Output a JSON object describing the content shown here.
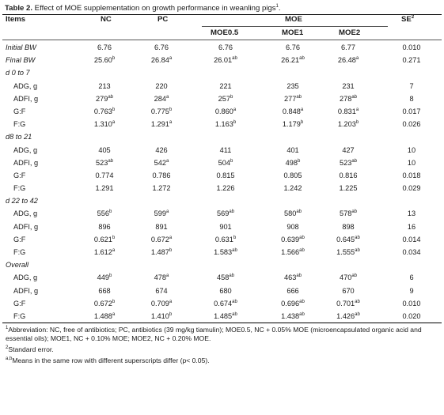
{
  "caption": {
    "bold": "Table 2.",
    "text": " Effect of MOE supplementation on growth performance in weanling pigs",
    "sup": "1",
    "end": "."
  },
  "header": {
    "items": "Items",
    "nc": "NC",
    "pc": "PC",
    "moe": "MOE",
    "se": "SE",
    "se_sup": "2",
    "moe05": "MOE0.5",
    "moe1": "MOE1",
    "moe2": "MOE2"
  },
  "rows": [
    {
      "label": "Initial BW",
      "italic": true,
      "indent": false,
      "vals": [
        [
          "6.76",
          ""
        ],
        [
          "6.76",
          ""
        ],
        [
          "6.76",
          ""
        ],
        [
          "6.76",
          ""
        ],
        [
          "6.77",
          ""
        ],
        [
          "0.010",
          ""
        ]
      ]
    },
    {
      "label": "Final BW",
      "italic": true,
      "indent": false,
      "vals": [
        [
          "25.60",
          "b"
        ],
        [
          "26.84",
          "a"
        ],
        [
          "26.01",
          "ab"
        ],
        [
          "26.21",
          "ab"
        ],
        [
          "26.48",
          "a"
        ],
        [
          "0.271",
          ""
        ]
      ]
    },
    {
      "label": "d 0 to 7",
      "italic": true,
      "indent": false,
      "vals": [
        [
          "",
          ""
        ],
        [
          "",
          ""
        ],
        [
          "",
          ""
        ],
        [
          "",
          ""
        ],
        [
          "",
          ""
        ],
        [
          "",
          ""
        ]
      ]
    },
    {
      "label": "ADG, g",
      "italic": false,
      "indent": true,
      "vals": [
        [
          "213",
          ""
        ],
        [
          "220",
          ""
        ],
        [
          "221",
          ""
        ],
        [
          "235",
          ""
        ],
        [
          "231",
          ""
        ],
        [
          "7",
          ""
        ]
      ]
    },
    {
      "label": "ADFI, g",
      "italic": false,
      "indent": true,
      "vals": [
        [
          "279",
          "ab"
        ],
        [
          "284",
          "a"
        ],
        [
          "257",
          "b"
        ],
        [
          "277",
          "ab"
        ],
        [
          "278",
          "ab"
        ],
        [
          "8",
          ""
        ]
      ]
    },
    {
      "label": "G:F",
      "italic": false,
      "indent": true,
      "vals": [
        [
          "0.763",
          "b"
        ],
        [
          "0.775",
          "b"
        ],
        [
          "0.860",
          "a"
        ],
        [
          "0.848",
          "a"
        ],
        [
          "0.831",
          "a"
        ],
        [
          "0.017",
          ""
        ]
      ]
    },
    {
      "label": "F:G",
      "italic": false,
      "indent": true,
      "vals": [
        [
          "1.310",
          "a"
        ],
        [
          "1.291",
          "a"
        ],
        [
          "1.163",
          "b"
        ],
        [
          "1.179",
          "b"
        ],
        [
          "1.203",
          "b"
        ],
        [
          "0.026",
          ""
        ]
      ]
    },
    {
      "label": "d8 to 21",
      "italic": true,
      "indent": false,
      "vals": [
        [
          "",
          ""
        ],
        [
          "",
          ""
        ],
        [
          "",
          ""
        ],
        [
          "",
          ""
        ],
        [
          "",
          ""
        ],
        [
          "",
          ""
        ]
      ]
    },
    {
      "label": "ADG, g",
      "italic": false,
      "indent": true,
      "vals": [
        [
          "405",
          ""
        ],
        [
          "426",
          ""
        ],
        [
          "411",
          ""
        ],
        [
          "401",
          ""
        ],
        [
          "427",
          ""
        ],
        [
          "10",
          ""
        ]
      ]
    },
    {
      "label": "ADFI, g",
      "italic": false,
      "indent": true,
      "vals": [
        [
          "523",
          "ab"
        ],
        [
          "542",
          "a"
        ],
        [
          "504",
          "b"
        ],
        [
          "498",
          "b"
        ],
        [
          "523",
          "ab"
        ],
        [
          "10",
          ""
        ]
      ]
    },
    {
      "label": "G:F",
      "italic": false,
      "indent": true,
      "vals": [
        [
          "0.774",
          ""
        ],
        [
          "0.786",
          ""
        ],
        [
          "0.815",
          ""
        ],
        [
          "0.805",
          ""
        ],
        [
          "0.816",
          ""
        ],
        [
          "0.018",
          ""
        ]
      ]
    },
    {
      "label": "F:G",
      "italic": false,
      "indent": true,
      "vals": [
        [
          "1.291",
          ""
        ],
        [
          "1.272",
          ""
        ],
        [
          "1.226",
          ""
        ],
        [
          "1.242",
          ""
        ],
        [
          "1.225",
          ""
        ],
        [
          "0.029",
          ""
        ]
      ]
    },
    {
      "label": "d 22 to 42",
      "italic": true,
      "indent": false,
      "vals": [
        [
          "",
          ""
        ],
        [
          "",
          ""
        ],
        [
          "",
          ""
        ],
        [
          "",
          ""
        ],
        [
          "",
          ""
        ],
        [
          "",
          ""
        ]
      ]
    },
    {
      "label": "ADG, g",
      "italic": false,
      "indent": true,
      "vals": [
        [
          "556",
          "b"
        ],
        [
          "599",
          "a"
        ],
        [
          "569",
          "ab"
        ],
        [
          "580",
          "ab"
        ],
        [
          "578",
          "ab"
        ],
        [
          "13",
          ""
        ]
      ]
    },
    {
      "label": "ADFI, g",
      "italic": false,
      "indent": true,
      "vals": [
        [
          "896",
          ""
        ],
        [
          "891",
          ""
        ],
        [
          "901",
          ""
        ],
        [
          "908",
          ""
        ],
        [
          "898",
          ""
        ],
        [
          "16",
          ""
        ]
      ]
    },
    {
      "label": "G:F",
      "italic": false,
      "indent": true,
      "vals": [
        [
          "0.621",
          "b"
        ],
        [
          "0.672",
          "a"
        ],
        [
          "0.631",
          "b"
        ],
        [
          "0.639",
          "ab"
        ],
        [
          "0.645",
          "ab"
        ],
        [
          "0.014",
          ""
        ]
      ]
    },
    {
      "label": "F:G",
      "italic": false,
      "indent": true,
      "vals": [
        [
          "1.612",
          "a"
        ],
        [
          "1.487",
          "b"
        ],
        [
          "1.583",
          "ab"
        ],
        [
          "1.566",
          "ab"
        ],
        [
          "1.555",
          "ab"
        ],
        [
          "0.034",
          ""
        ]
      ]
    },
    {
      "label": "Overall",
      "italic": true,
      "indent": false,
      "vals": [
        [
          "",
          ""
        ],
        [
          "",
          ""
        ],
        [
          "",
          ""
        ],
        [
          "",
          ""
        ],
        [
          "",
          ""
        ],
        [
          "",
          ""
        ]
      ]
    },
    {
      "label": "ADG, g",
      "italic": false,
      "indent": true,
      "vals": [
        [
          "449",
          "b"
        ],
        [
          "478",
          "a"
        ],
        [
          "458",
          "ab"
        ],
        [
          "463",
          "ab"
        ],
        [
          "470",
          "ab"
        ],
        [
          "6",
          ""
        ]
      ]
    },
    {
      "label": "ADFI, g",
      "italic": false,
      "indent": true,
      "vals": [
        [
          "668",
          ""
        ],
        [
          "674",
          ""
        ],
        [
          "680",
          ""
        ],
        [
          "666",
          ""
        ],
        [
          "670",
          ""
        ],
        [
          "9",
          ""
        ]
      ]
    },
    {
      "label": "G:F",
      "italic": false,
      "indent": true,
      "vals": [
        [
          "0.672",
          "b"
        ],
        [
          "0.709",
          "a"
        ],
        [
          "0.674",
          "ab"
        ],
        [
          "0.696",
          "ab"
        ],
        [
          "0.701",
          "ab"
        ],
        [
          "0.010",
          ""
        ]
      ]
    },
    {
      "label": "F:G",
      "italic": false,
      "indent": true,
      "vals": [
        [
          "1.488",
          "a"
        ],
        [
          "1.410",
          "b"
        ],
        [
          "1.485",
          "ab"
        ],
        [
          "1.438",
          "ab"
        ],
        [
          "1.426",
          "ab"
        ],
        [
          "0.020",
          ""
        ]
      ]
    }
  ],
  "footnotes": {
    "n1_sup": "1",
    "n1": "Abbreviation: NC, free of antibiotics; PC, antibiotics (39 mg/kg tiamulin); MOE0.5, NC + 0.05% MOE (microencapsulated organic acid and essential oils); MOE1, NC + 0.10% MOE; MOE2, NC + 0.20% MOE.",
    "n2_sup": "2",
    "n2": "Standard error.",
    "n3_sup": "a,b",
    "n3": "Means in the same row with different superscripts differ (p< 0.05)."
  }
}
